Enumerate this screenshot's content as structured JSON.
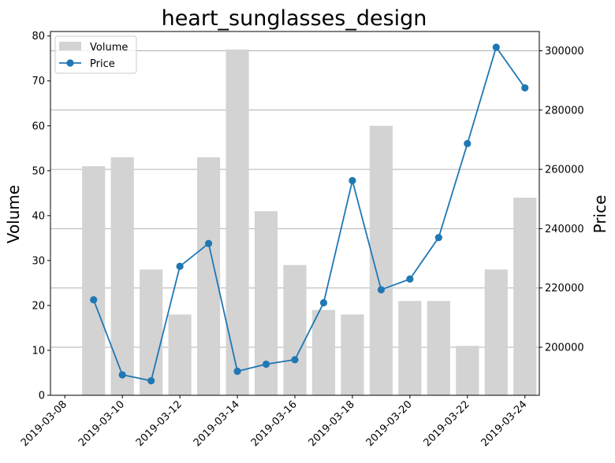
{
  "chart_data": {
    "type": "bar",
    "title": "heart_sunglasses_design",
    "ylabel_left": "Volume",
    "ylabel_right": "Price",
    "x": [
      "2019-03-09",
      "2019-03-10",
      "2019-03-11",
      "2019-03-12",
      "2019-03-13",
      "2019-03-14",
      "2019-03-15",
      "2019-03-16",
      "2019-03-17",
      "2019-03-18",
      "2019-03-19",
      "2019-03-20",
      "2019-03-21",
      "2019-03-22",
      "2019-03-23",
      "2019-03-24"
    ],
    "x_ticks": [
      "2019-03-08",
      "2019-03-10",
      "2019-03-12",
      "2019-03-14",
      "2019-03-16",
      "2019-03-18",
      "2019-03-20",
      "2019-03-22",
      "2019-03-24"
    ],
    "series": [
      {
        "name": "Volume",
        "type": "bar",
        "axis": "left",
        "color": "#d3d3d3",
        "values": [
          51,
          53,
          28,
          18,
          53,
          77,
          41,
          29,
          19,
          18,
          60,
          21,
          21,
          11,
          28,
          44
        ]
      },
      {
        "name": "Price",
        "type": "line",
        "axis": "right",
        "color": "#1f77b4",
        "values": [
          216000,
          190700,
          188700,
          227300,
          235000,
          191900,
          194300,
          195800,
          215000,
          256200,
          219400,
          223000,
          237000,
          268700,
          301200,
          287500
        ]
      }
    ],
    "ylim_left": [
      0,
      81
    ],
    "ylim_right": [
      183800,
      306500
    ],
    "yticks_left": [
      0,
      10,
      20,
      30,
      40,
      50,
      60,
      70,
      80
    ],
    "yticks_right": [
      200000,
      220000,
      240000,
      260000,
      280000,
      300000
    ],
    "xlim": [
      "2019-03-07T12:00",
      "2019-03-24T12:00"
    ],
    "grid": "right-axis horizontal",
    "legend": "upper-left"
  }
}
